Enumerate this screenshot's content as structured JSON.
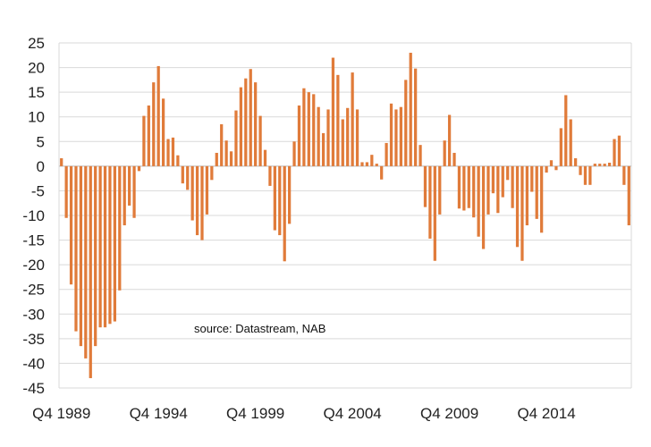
{
  "chart_data": {
    "type": "bar",
    "annotation": "source:  Datastream, NAB",
    "bar_color": "#e07b3a",
    "ylim": [
      -45,
      25
    ],
    "yticks": [
      25,
      20,
      15,
      10,
      5,
      0,
      -5,
      -10,
      -15,
      -20,
      -25,
      -30,
      -35,
      -40,
      -45
    ],
    "xtick_labels": [
      "Q4 1989",
      "Q4 1994",
      "Q4 1999",
      "Q4 2004",
      "Q4 2009",
      "Q4 2014"
    ],
    "grid": true,
    "start_quarter": "Q4 1989",
    "values": [
      1.6,
      -10.5,
      -24,
      -33.5,
      -36.5,
      -39,
      -43,
      -36.5,
      -32.7,
      -32.7,
      -32,
      -31.5,
      -25.2,
      -12,
      -8,
      -10.5,
      -1,
      10.2,
      12.3,
      17,
      20.3,
      13.7,
      5.5,
      5.8,
      2.2,
      -3.5,
      -4.8,
      -11,
      -14,
      -15,
      -9.8,
      -2.8,
      2.7,
      8.5,
      5.2,
      3.0,
      11.3,
      16,
      17.8,
      19.7,
      17,
      10.2,
      3.3,
      -4,
      -13,
      -14,
      -19.3,
      -11.7,
      5,
      12.3,
      15.8,
      15,
      14.6,
      12,
      6.7,
      11.5,
      22,
      18.5,
      9.5,
      11.8,
      19,
      11.5,
      0.8,
      0.8,
      2.3,
      0.5,
      -2.7,
      4.7,
      12.7,
      11.5,
      12,
      17.5,
      23,
      19.8,
      4.3,
      -8.3,
      -14.7,
      -19.2,
      -9.8,
      5.2,
      10.4,
      2.7,
      -8.6,
      -9,
      -8.5,
      -10.4,
      -14.3,
      -16.8,
      -9.8,
      -5.5,
      -9.5,
      -6.3,
      -2.8,
      -8.5,
      -16.4,
      -19.2,
      -12,
      -5.2,
      -10.7,
      -13.5,
      -1.3,
      1.2,
      -0.8,
      7.7,
      14.4,
      9.5,
      1.6,
      -1.8,
      -3.8,
      -3.8,
      0.5,
      0.5,
      0.5,
      0.7,
      5.5,
      6.2,
      -3.8,
      -12
    ]
  }
}
